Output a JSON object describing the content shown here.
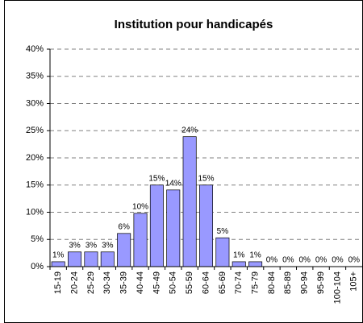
{
  "chart_data": {
    "type": "bar",
    "title": "Institution pour handicapés",
    "categories": [
      "15-19",
      "20-24",
      "25-29",
      "30-34",
      "35-39",
      "40-44",
      "45-49",
      "50-54",
      "55-59",
      "60-64",
      "65-69",
      "70-74",
      "75-79",
      "80-84",
      "85-89",
      "90-94",
      "95-99",
      "100-104",
      "105+"
    ],
    "values": [
      0.9,
      2.7,
      2.7,
      2.7,
      6.1,
      9.8,
      15.0,
      14.1,
      23.9,
      15.0,
      5.3,
      0.9,
      0.9,
      0,
      0,
      0,
      0,
      0,
      0
    ],
    "value_labels": [
      "1%",
      "3%",
      "3%",
      "3%",
      "6%",
      "10%",
      "15%",
      "14%",
      "24%",
      "15%",
      "5%",
      "1%",
      "1%",
      "0%",
      "0%",
      "0%",
      "0%",
      "0%",
      "0%"
    ],
    "color": "#9999ff",
    "ylim": [
      0,
      40
    ],
    "yticks": [
      {
        "value": 0,
        "label": "0%"
      },
      {
        "value": 5,
        "label": "5%"
      },
      {
        "value": 10,
        "label": "10%"
      },
      {
        "value": 15,
        "label": "15%"
      },
      {
        "value": 20,
        "label": "20%"
      },
      {
        "value": 25,
        "label": "25%"
      },
      {
        "value": 30,
        "label": "30%"
      },
      {
        "value": 35,
        "label": "35%"
      },
      {
        "value": 40,
        "label": "40%"
      }
    ],
    "grid": true
  }
}
